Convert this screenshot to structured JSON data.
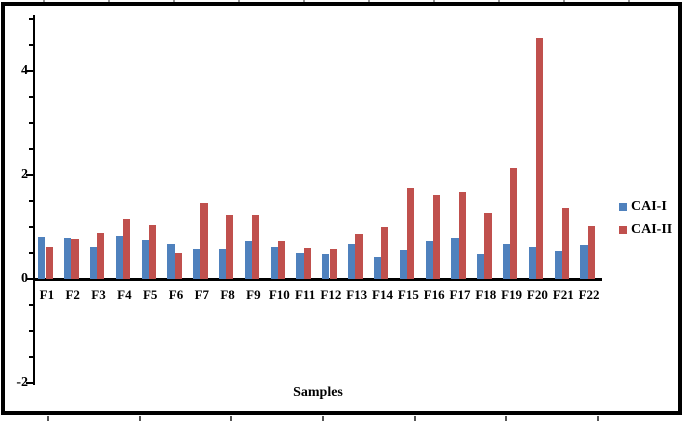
{
  "chart_data": {
    "type": "bar",
    "title": "",
    "xlabel": "Samples",
    "ylabel": "",
    "categories": [
      "F1",
      "F2",
      "F3",
      "F4",
      "F5",
      "F6",
      "F7",
      "F8",
      "F9",
      "F10",
      "F11",
      "F12",
      "F13",
      "F14",
      "F15",
      "F16",
      "F17",
      "F18",
      "F19",
      "F20",
      "F21",
      "F22"
    ],
    "series": [
      {
        "name": "CAI-I",
        "color": "#4F81BD",
        "values": [
          0.8,
          0.79,
          0.62,
          0.83,
          0.76,
          0.68,
          0.58,
          0.58,
          0.73,
          0.62,
          0.5,
          0.48,
          0.68,
          0.42,
          0.55,
          0.73,
          0.78,
          0.48,
          0.68,
          0.62,
          0.54,
          0.66
        ]
      },
      {
        "name": "CAI-II",
        "color": "#C0504D",
        "values": [
          0.61,
          0.77,
          0.88,
          1.15,
          1.04,
          0.51,
          1.46,
          1.23,
          1.23,
          0.73,
          0.59,
          0.58,
          0.87,
          1.0,
          1.75,
          1.61,
          1.67,
          1.27,
          2.14,
          4.64,
          1.36,
          1.02
        ]
      }
    ],
    "ylim": [
      -2,
      5
    ],
    "y_major_ticks": [
      -2,
      0,
      2,
      4
    ],
    "y_minor_step": 0.5,
    "grid": "off",
    "legend_position": "right",
    "axis_color": "#000000",
    "frame_color": "#000000",
    "background": "#ffffff"
  }
}
